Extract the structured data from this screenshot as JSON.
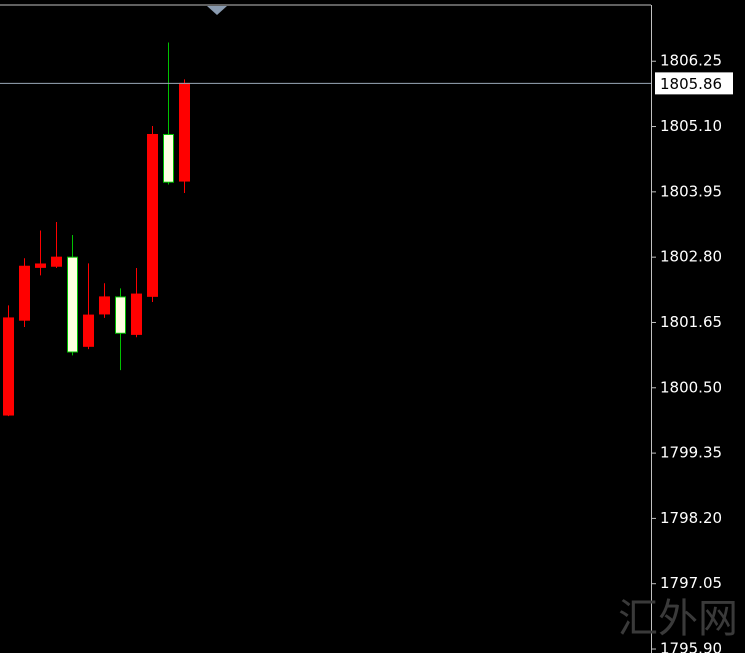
{
  "chart_data": {
    "type": "candlestick",
    "categories": [
      null,
      null,
      null,
      null,
      null,
      null,
      null,
      null,
      null,
      null,
      null,
      null
    ],
    "open": [
      1800.02,
      1801.69,
      1802.62,
      1802.64,
      1802.8,
      1801.23,
      1801.8,
      1802.1,
      1801.44,
      1802.11,
      1804.96,
      1804.14
    ],
    "high": [
      1801.95,
      1802.78,
      1803.27,
      1803.42,
      1803.19,
      1802.69,
      1802.34,
      1802.25,
      1802.61,
      1805.11,
      1806.58,
      1805.93
    ],
    "low": [
      1800.0,
      1801.57,
      1802.48,
      1802.61,
      1801.07,
      1801.18,
      1801.73,
      1800.81,
      1801.39,
      1802.01,
      1804.08,
      1803.93
    ],
    "close": [
      1801.73,
      1802.64,
      1802.68,
      1802.8,
      1801.13,
      1801.78,
      1802.1,
      1801.46,
      1802.15,
      1804.96,
      1804.12,
      1805.86
    ],
    "up_color": "#ff0000",
    "down_color": "#ffffe0",
    "down_wick_color": "#00c000",
    "ylim": [
      1795.83,
      1807.24
    ],
    "yticks": [
      1806.25,
      {
        "value": 1805.1,
        "label": "1805.10"
      },
      1803.95,
      {
        "value": 1802.8,
        "label": "1802.80"
      },
      1801.65,
      {
        "value": 1800.5,
        "label": "1800.50"
      },
      1799.35,
      {
        "value": 1798.2,
        "label": "1798.20"
      },
      1797.05,
      {
        "value": 1795.9,
        "label": "1795.90"
      }
    ],
    "current_price": 1805.86,
    "watermark": "汇外网"
  }
}
